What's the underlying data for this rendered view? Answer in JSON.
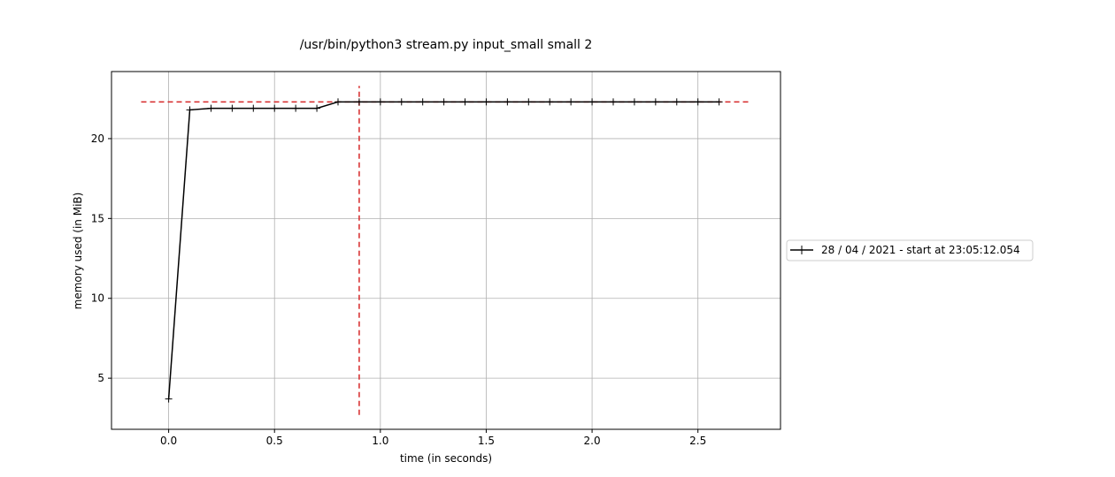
{
  "chart_data": {
    "type": "line",
    "title": "/usr/bin/python3 stream.py input_small small 2",
    "xlabel": "time (in seconds)",
    "ylabel": "memory used (in MiB)",
    "xlim": [
      -0.27,
      2.89
    ],
    "ylim": [
      1.8,
      24.2
    ],
    "xticks": [
      0.0,
      0.5,
      1.0,
      1.5,
      2.0,
      2.5
    ],
    "xtick_labels": [
      "0.0",
      "0.5",
      "1.0",
      "1.5",
      "2.0",
      "2.5"
    ],
    "yticks": [
      5,
      10,
      15,
      20
    ],
    "ytick_labels": [
      "5",
      "10",
      "15",
      "20"
    ],
    "grid": true,
    "legend_placement": "right, outside plot area",
    "series": [
      {
        "name": "28 / 04 / 2021 - start at 23:05:12.054",
        "color": "#000000",
        "marker": "plus",
        "x": [
          0.0,
          0.1,
          0.2,
          0.3,
          0.4,
          0.5,
          0.6,
          0.7,
          0.8,
          0.9,
          1.0,
          1.1,
          1.2,
          1.3,
          1.4,
          1.5,
          1.6,
          1.7,
          1.8,
          1.9,
          2.0,
          2.1,
          2.2,
          2.3,
          2.4,
          2.5,
          2.6
        ],
        "y": [
          3.7,
          21.8,
          21.9,
          21.9,
          21.9,
          21.9,
          21.9,
          21.9,
          22.3,
          22.3,
          22.3,
          22.3,
          22.3,
          22.3,
          22.3,
          22.3,
          22.3,
          22.3,
          22.3,
          22.3,
          22.3,
          22.3,
          22.3,
          22.3,
          22.3,
          22.3,
          22.3
        ]
      }
    ],
    "reference_lines": [
      {
        "orientation": "horizontal",
        "y": 22.3,
        "x_from": -0.13,
        "x_to": 2.75,
        "color": "#d62728",
        "style": "dashed"
      },
      {
        "orientation": "vertical",
        "x": 0.9,
        "y_from": 2.7,
        "y_to": 23.3,
        "color": "#d62728",
        "style": "dashed"
      }
    ]
  }
}
